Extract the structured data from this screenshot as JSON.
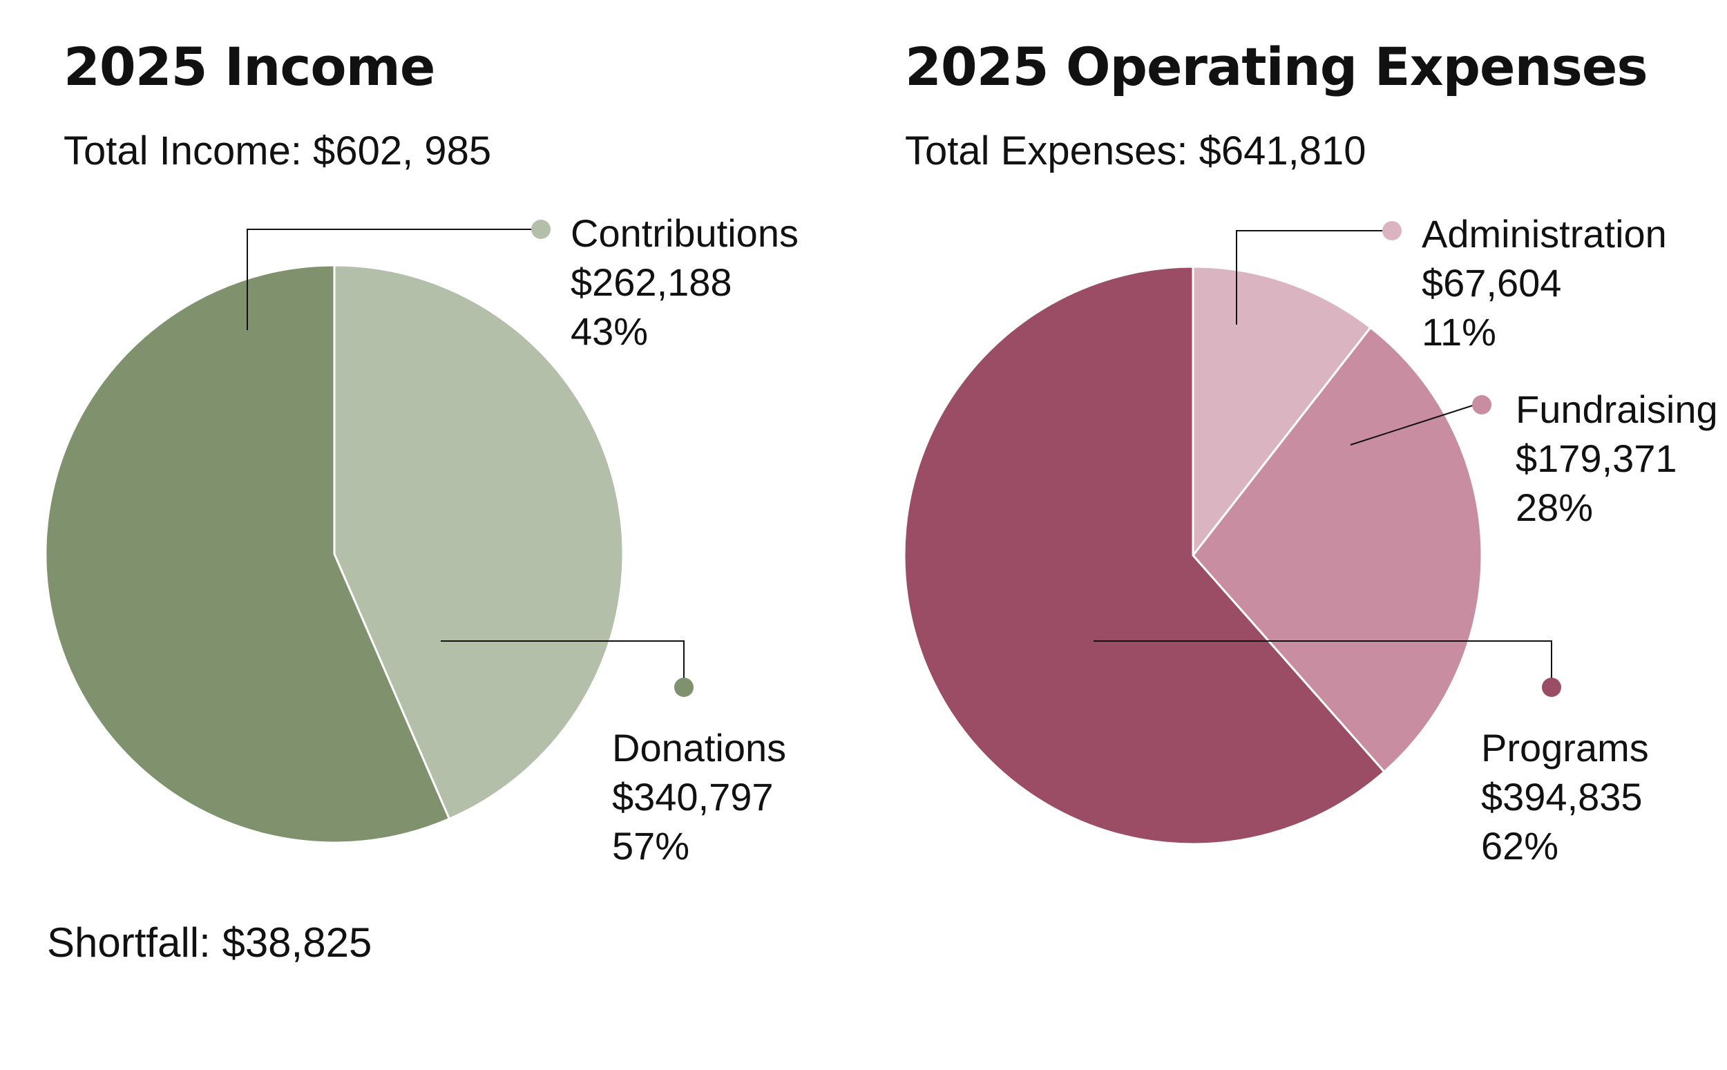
{
  "charts": {
    "income": {
      "title": "2025 Income",
      "subtitle": "Total Income: $602, 985",
      "chart_data": {
        "type": "pie",
        "title": "2025 Income",
        "slices": [
          {
            "name": "Contributions",
            "amount": "$262,188",
            "percent": "43%",
            "value": 262188,
            "color": "#b3bfa9"
          },
          {
            "name": "Donations",
            "amount": "$340,797",
            "percent": "57%",
            "value": 340797,
            "color": "#80926d"
          }
        ]
      }
    },
    "expenses": {
      "title": "2025 Operating Expenses",
      "subtitle": "Total Expenses: $641,810",
      "chart_data": {
        "type": "pie",
        "title": "2025 Operating Expenses",
        "slices": [
          {
            "name": "Administration",
            "amount": "$67,604",
            "percent": "11%",
            "value": 67604,
            "color": "#dbb4c1"
          },
          {
            "name": "Fundraising",
            "amount": "$179,371",
            "percent": "28%",
            "value": 179371,
            "color": "#c88da0"
          },
          {
            "name": "Programs",
            "amount": "$394,835",
            "percent": "62%",
            "value": 394835,
            "color": "#9a4d64"
          }
        ]
      }
    }
  },
  "footer": {
    "shortfall": "Shortfall: $38,825"
  }
}
